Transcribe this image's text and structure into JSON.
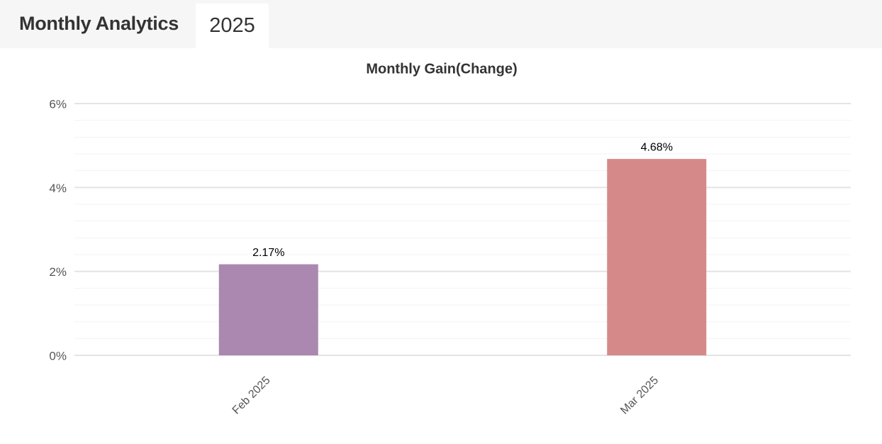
{
  "header": {
    "title": "Monthly Analytics",
    "tabs": [
      "2025"
    ]
  },
  "chart_data": {
    "type": "bar",
    "title": "Monthly Gain(Change)",
    "categories": [
      "Feb 2025",
      "Mar 2025"
    ],
    "values": [
      2.17,
      4.68
    ],
    "value_labels": [
      "2.17%",
      "4.68%"
    ],
    "colors": [
      "#ab88b0",
      "#d58a89"
    ],
    "ylim": [
      0,
      6
    ],
    "yticks": [
      {
        "value": 0,
        "label": "0%"
      },
      {
        "value": 2,
        "label": "2%"
      },
      {
        "value": 4,
        "label": "4%"
      },
      {
        "value": 6,
        "label": "6%"
      }
    ],
    "minor_yticks": [
      0.4,
      0.8,
      1.2,
      1.6,
      2.4,
      2.8,
      3.2,
      3.6,
      4.4,
      4.8,
      5.2,
      5.6
    ],
    "grid": true
  }
}
